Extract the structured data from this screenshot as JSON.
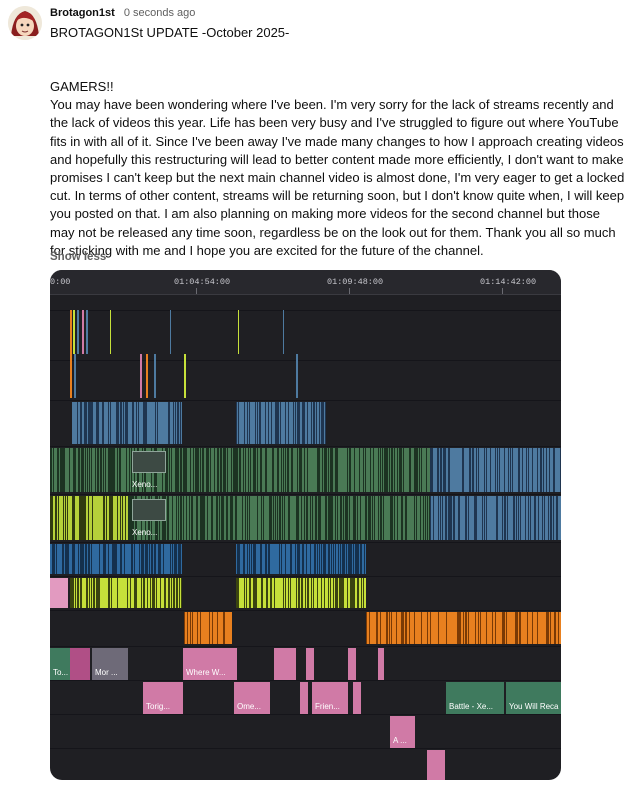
{
  "post": {
    "author": "Brotagon1st",
    "time": "0 seconds ago",
    "title": "BROTAGON1St UPDATE -October 2025-",
    "greeting": "GAMERS!!",
    "body": "You may have been wondering where I've been. I'm very sorry for the lack of streams recently and the lack of videos this year. Life has been very busy and I've struggled to figure out where YouTube fits in with all of it. Since I've been away I've made many changes to how I approach creating videos and hopefully this restructuring will lead to better content made more efficiently, I don't want to make promises I can't keep but the next main channel video is almost done, I'm very eager to get a locked cut. In terms of other content, streams will be returning soon, but I don't know quite when, I will keep you posted on that. I am also planning on making more videos for the second channel but those may not be released any time soon, regardless be on the look out for them. Thank you all so much for sticking with me and I hope you are excited for the future of the channel.",
    "show_less": "Show less"
  },
  "timeline": {
    "timecodes": [
      "0:00",
      "01:04:54:00",
      "01:09:48:00",
      "01:14:42:00"
    ],
    "clip_labels": {
      "xeno_a": "Xeno...",
      "xeno_b": "Xeno...",
      "to": "To...",
      "mor": "Mor ...",
      "where": "Where W...",
      "torig": "Torig...",
      "ome": "Ome...",
      "frien": "Frien...",
      "battle": "Battle - Xe...",
      "recall": "You Will Reca",
      "a": "A ..."
    },
    "colors": {
      "video_green": "#4a7a55",
      "video_blue": "#4e7aa0",
      "video_yellow": "#b5d13a",
      "audio_blue": "#2f6aa0",
      "audio_yellow": "#c6e03a",
      "orange": "#e8801f",
      "pink": "#d07aa6",
      "magenta": "#b04f86",
      "gray": "#6e6a78",
      "teal": "#3f7a5e"
    }
  }
}
